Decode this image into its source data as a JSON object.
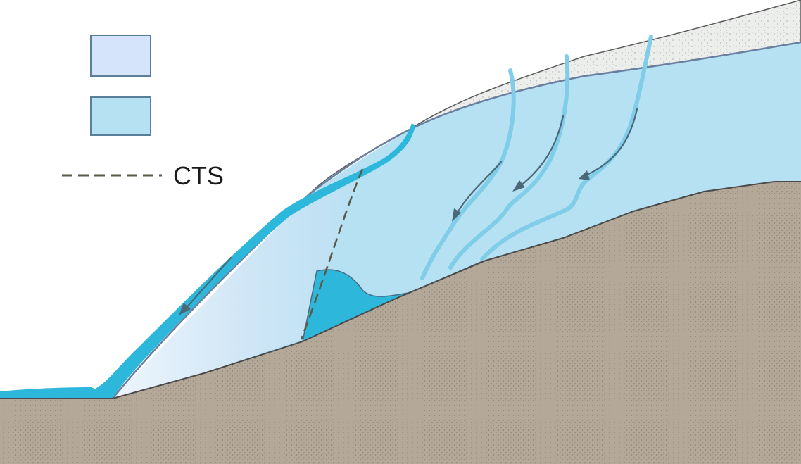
{
  "legend": {
    "items": [
      {
        "swatch": "cold-ice",
        "color": "#d6e4fb",
        "label": ""
      },
      {
        "swatch": "temperate-ice",
        "color": "#b6e1f3",
        "label": ""
      },
      {
        "swatch": "cts-line",
        "color": "#5a5a48",
        "label": "CTS"
      }
    ]
  },
  "colors": {
    "bedrock": "#b4a898",
    "firn": "#eceeec",
    "temperate_ice": "#b6e1f3",
    "cold_ice": "#d6e4fb",
    "meltwater": "#2db7da",
    "meltwater_channel": "#7fcde8",
    "arrow": "#4a6878",
    "outline": "#5a5a5a",
    "cts": "#5a5a48"
  }
}
